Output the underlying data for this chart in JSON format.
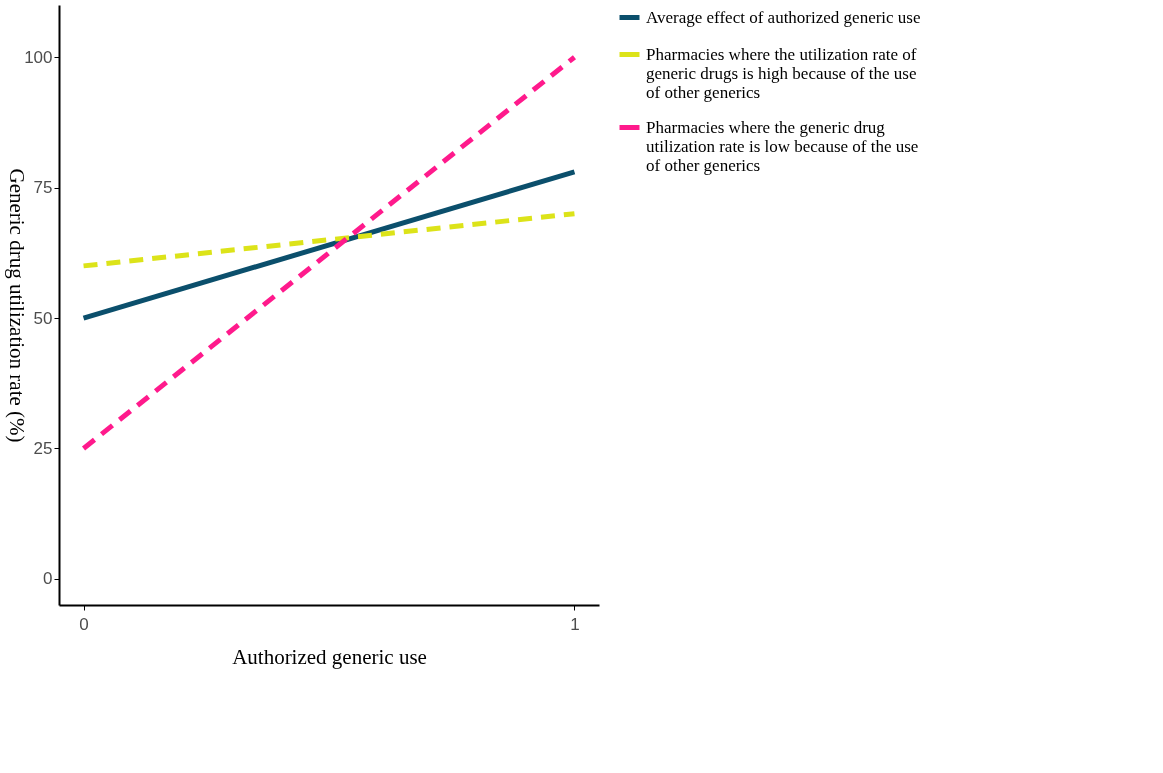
{
  "chart_data": {
    "type": "line",
    "xlabel": "Authorized generic use",
    "ylabel": "Generic drug utilization rate (%)",
    "x": [
      0,
      1
    ],
    "xlim": [
      -0.05,
      1.05
    ],
    "xticks": [
      0,
      1
    ],
    "ylim": [
      -5,
      110
    ],
    "yticks": [
      0,
      25,
      50,
      75,
      100
    ],
    "grid": false,
    "legend": "right",
    "marker": "none",
    "series": [
      {
        "name": "Average effect of authorized generic use",
        "color": "#0b4f6c",
        "values": [
          50,
          78
        ],
        "line_style": "solid"
      },
      {
        "name": "Pharmacies where the utilization rate of generic drugs is high because of the use of other generics",
        "color": "#dce319",
        "values": [
          60,
          70
        ],
        "line_style": "dashed"
      },
      {
        "name": "Pharmacies where the generic drug utilization rate is low because of the use of other generics",
        "color": "#ff1a8c",
        "values": [
          25,
          100
        ],
        "line_style": "dashed"
      }
    ]
  }
}
